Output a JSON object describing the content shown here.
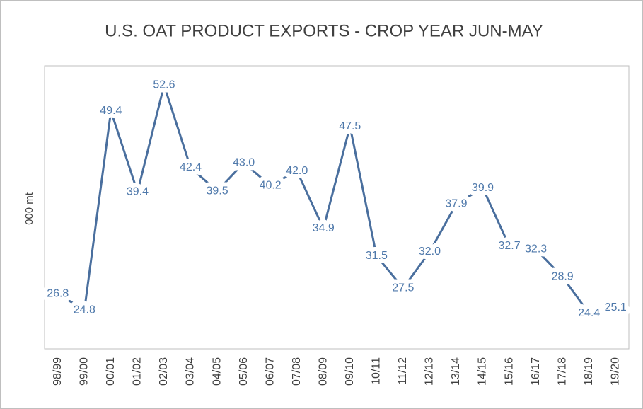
{
  "chart_data": {
    "type": "line",
    "title": "U.S. OAT PRODUCT EXPORTS - CROP YEAR JUN-MAY",
    "y_label": "000 mt",
    "categories": [
      "98/99",
      "99/00",
      "00/01",
      "01/02",
      "02/03",
      "03/04",
      "04/05",
      "05/06",
      "06/07",
      "07/08",
      "08/09",
      "09/10",
      "10/11",
      "11/12",
      "12/13",
      "13/14",
      "14/15",
      "15/16",
      "16/17",
      "17/18",
      "18/19",
      "19/20"
    ],
    "values": [
      26.8,
      24.8,
      49.4,
      39.4,
      52.6,
      42.4,
      39.5,
      43.0,
      40.2,
      42.0,
      34.9,
      47.5,
      31.5,
      27.5,
      32.0,
      37.9,
      39.9,
      32.7,
      32.3,
      28.9,
      24.4,
      25.1
    ],
    "value_labels": [
      "26.8",
      "24.8",
      "49.4",
      "39.4",
      "52.6",
      "42.4",
      "39.5",
      "43.0",
      "40.2",
      "42.0",
      "34.9",
      "47.5",
      "31.5",
      "27.5",
      "32.0",
      "37.9",
      "39.9",
      "32.7",
      "32.3",
      "28.9",
      "24.4",
      "25.1"
    ],
    "color": "#4a6f9e",
    "ylim": [
      20,
      55
    ]
  }
}
